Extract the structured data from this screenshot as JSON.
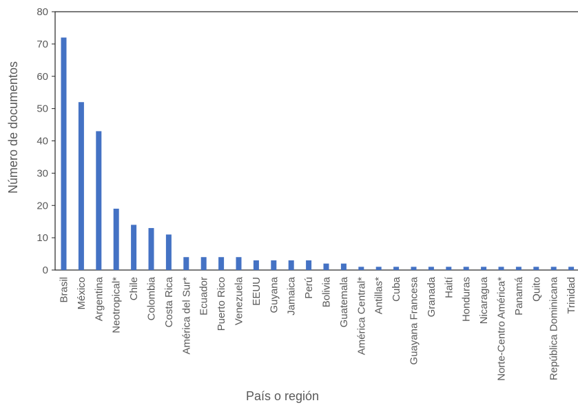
{
  "chart_data": {
    "type": "bar",
    "xlabel": "País o región",
    "ylabel": "Número de documentos",
    "ylim": [
      0,
      80
    ],
    "yticks": [
      0,
      10,
      20,
      30,
      40,
      50,
      60,
      70,
      80
    ],
    "grid": false,
    "bar_color": "#4472c4",
    "categories": [
      "Brasil",
      "México",
      "Argentina",
      "Neotropical*",
      "Chile",
      "Colombia",
      "Costa Rica",
      "América del Sur*",
      "Ecuador",
      "Puerto Rico",
      "Venezuela",
      "EEUU",
      "Guyana",
      "Jamaica",
      "Perú",
      "Bolivia",
      "Guatemala",
      "América Central*",
      "Antillas*",
      "Cuba",
      "Guayana Francesa",
      "Granada",
      "Haití",
      "Honduras",
      "Nicaragua",
      "Norte-Centro América*",
      "Panamá",
      "Quito",
      "República Dominicana",
      "Trinidad"
    ],
    "values": [
      72,
      52,
      43,
      19,
      14,
      13,
      11,
      4,
      4,
      4,
      4,
      3,
      3,
      3,
      3,
      2,
      2,
      1,
      1,
      1,
      1,
      1,
      1,
      1,
      1,
      1,
      1,
      1,
      1,
      1
    ]
  }
}
